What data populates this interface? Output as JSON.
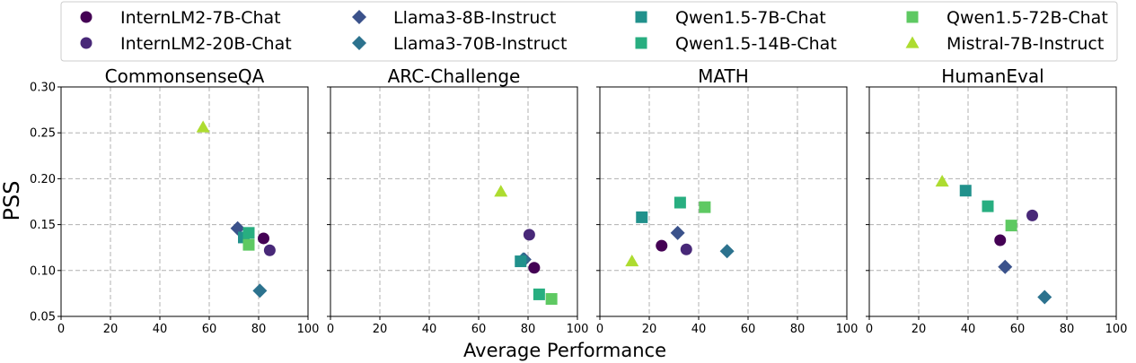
{
  "chart_data": {
    "type": "scatter",
    "xlabel": "Average Performance",
    "ylabel": "PSS",
    "xlim": [
      0,
      100
    ],
    "ylim": [
      0.05,
      0.3
    ],
    "xticks": [
      "0",
      "20",
      "40",
      "60",
      "80",
      "100"
    ],
    "yticks": [
      "0.05",
      "0.10",
      "0.15",
      "0.20",
      "0.25",
      "0.30"
    ],
    "grid": true,
    "legend_position": "top",
    "series": [
      {
        "name": "InternLM2-7B-Chat",
        "color": "#440154",
        "marker": "circle"
      },
      {
        "name": "InternLM2-20B-Chat",
        "color": "#482878",
        "marker": "circle"
      },
      {
        "name": "Llama3-8B-Instruct",
        "color": "#3b528b",
        "marker": "diamond"
      },
      {
        "name": "Llama3-70B-Instruct",
        "color": "#2c728e",
        "marker": "diamond"
      },
      {
        "name": "Qwen1.5-7B-Chat",
        "color": "#21918c",
        "marker": "square"
      },
      {
        "name": "Qwen1.5-14B-Chat",
        "color": "#28ae80",
        "marker": "square"
      },
      {
        "name": "Qwen1.5-72B-Chat",
        "color": "#5ec962",
        "marker": "square"
      },
      {
        "name": "Mistral-7B-Instruct",
        "color": "#addc30",
        "marker": "triangle"
      }
    ],
    "panels": [
      {
        "title": "CommonsenseQA",
        "points": [
          {
            "series": 0,
            "x": 82,
            "y": 0.135
          },
          {
            "series": 1,
            "x": 84.5,
            "y": 0.122
          },
          {
            "series": 2,
            "x": 71.5,
            "y": 0.146
          },
          {
            "series": 3,
            "x": 80.5,
            "y": 0.078
          },
          {
            "series": 4,
            "x": 74,
            "y": 0.136
          },
          {
            "series": 5,
            "x": 76,
            "y": 0.141
          },
          {
            "series": 6,
            "x": 76,
            "y": 0.128
          },
          {
            "series": 7,
            "x": 57.5,
            "y": 0.256
          }
        ]
      },
      {
        "title": "ARC-Challenge",
        "points": [
          {
            "series": 0,
            "x": 82.5,
            "y": 0.103
          },
          {
            "series": 1,
            "x": 80.5,
            "y": 0.139
          },
          {
            "series": 2,
            "x": 78.5,
            "y": 0.112
          },
          {
            "series": 3,
            "x": 78,
            "y": 0.112
          },
          {
            "series": 4,
            "x": 77,
            "y": 0.11
          },
          {
            "series": 5,
            "x": 84.5,
            "y": 0.074
          },
          {
            "series": 6,
            "x": 89.5,
            "y": 0.069
          },
          {
            "series": 7,
            "x": 69,
            "y": 0.186
          }
        ]
      },
      {
        "title": "MATH",
        "points": [
          {
            "series": 0,
            "x": 25,
            "y": 0.127
          },
          {
            "series": 1,
            "x": 35,
            "y": 0.123
          },
          {
            "series": 2,
            "x": 31.5,
            "y": 0.141
          },
          {
            "series": 3,
            "x": 51.5,
            "y": 0.121
          },
          {
            "series": 4,
            "x": 17,
            "y": 0.158
          },
          {
            "series": 5,
            "x": 32.5,
            "y": 0.174
          },
          {
            "series": 6,
            "x": 42.5,
            "y": 0.169
          },
          {
            "series": 7,
            "x": 13,
            "y": 0.11
          }
        ]
      },
      {
        "title": "HumanEval",
        "points": [
          {
            "series": 0,
            "x": 53,
            "y": 0.133
          },
          {
            "series": 1,
            "x": 66,
            "y": 0.16
          },
          {
            "series": 2,
            "x": 55,
            "y": 0.104
          },
          {
            "series": 3,
            "x": 71,
            "y": 0.071
          },
          {
            "series": 4,
            "x": 39,
            "y": 0.187
          },
          {
            "series": 5,
            "x": 48,
            "y": 0.17
          },
          {
            "series": 6,
            "x": 57.5,
            "y": 0.149
          },
          {
            "series": 7,
            "x": 29.5,
            "y": 0.197
          }
        ]
      }
    ]
  }
}
